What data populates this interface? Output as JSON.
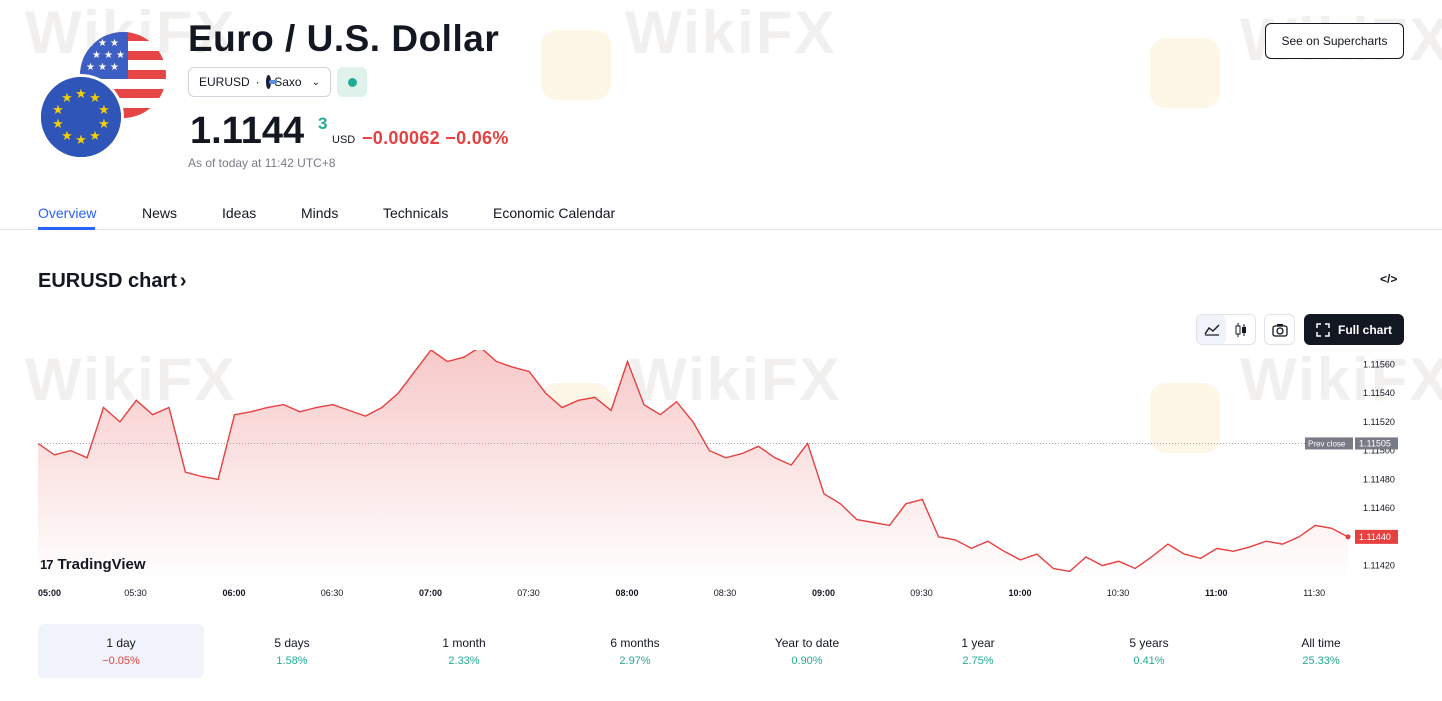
{
  "header": {
    "title": "Euro / U.S. Dollar",
    "symbol": "EURUSD",
    "separator": "·",
    "exchange": "Saxo",
    "price_main": "1.1144",
    "price_sup": "3",
    "currency": "USD",
    "change": "−0.00062 −0.06%",
    "as_of": "As of today at 11:42 UTC+8",
    "supercharts_label": "See on Supercharts"
  },
  "tabs": [
    {
      "label": "Overview",
      "active": true
    },
    {
      "label": "News"
    },
    {
      "label": "Ideas"
    },
    {
      "label": "Minds"
    },
    {
      "label": "Technicals"
    },
    {
      "label": "Economic Calendar"
    }
  ],
  "chart_section": {
    "heading": "EURUSD chart",
    "heading_arrow": "›",
    "embed_icon": "</>",
    "full_chart_label": "Full chart",
    "brand": "TradingView",
    "watermark": "WikiFX"
  },
  "chart_data": {
    "type": "area",
    "title": "",
    "x_labels": [
      "05:00",
      "05:30",
      "06:00",
      "06:30",
      "07:00",
      "07:30",
      "08:00",
      "08:30",
      "09:00",
      "09:30",
      "10:00",
      "10:30",
      "11:00",
      "11:30"
    ],
    "y_ticks": [
      "1.11560",
      "1.11540",
      "1.11520",
      "1.11500",
      "1.11480",
      "1.11460",
      "1.11420"
    ],
    "ylim": [
      1.1141,
      1.1157
    ],
    "prev_close": {
      "label": "Prev close",
      "value": "1.11505"
    },
    "last_price": "1.11440",
    "series": [
      {
        "x": [
          "05:00",
          "05:05",
          "05:10",
          "05:15",
          "05:20",
          "05:25",
          "05:30",
          "05:35",
          "05:40",
          "05:45",
          "05:50",
          "05:55",
          "06:00",
          "06:05",
          "06:10",
          "06:15",
          "06:20",
          "06:25",
          "06:30",
          "06:35",
          "06:40",
          "06:45",
          "06:50",
          "06:55",
          "07:00",
          "07:05",
          "07:10",
          "07:15",
          "07:20",
          "07:25",
          "07:30",
          "07:35",
          "07:40",
          "07:45",
          "07:50",
          "07:55",
          "08:00",
          "08:05",
          "08:10",
          "08:15",
          "08:20",
          "08:25",
          "08:30",
          "08:35",
          "08:40",
          "08:45",
          "08:50",
          "08:55",
          "09:00",
          "09:05",
          "09:10",
          "09:15",
          "09:20",
          "09:25",
          "09:30",
          "09:35",
          "09:40",
          "09:45",
          "09:50",
          "09:55",
          "10:00",
          "10:05",
          "10:10",
          "10:15",
          "10:20",
          "10:25",
          "10:30",
          "10:35",
          "10:40",
          "10:45",
          "10:50",
          "10:55",
          "11:00",
          "11:05",
          "11:10",
          "11:15",
          "11:20",
          "11:25",
          "11:30",
          "11:35",
          "11:40"
        ],
        "values": [
          1.11505,
          1.11497,
          1.115,
          1.11495,
          1.1153,
          1.1152,
          1.11535,
          1.11525,
          1.1153,
          1.11485,
          1.11482,
          1.1148,
          1.11525,
          1.11527,
          1.1153,
          1.11532,
          1.11527,
          1.1153,
          1.11532,
          1.11528,
          1.11524,
          1.1153,
          1.1154,
          1.11555,
          1.1157,
          1.11562,
          1.11565,
          1.11572,
          1.11562,
          1.11558,
          1.11555,
          1.1154,
          1.1153,
          1.11535,
          1.11537,
          1.11528,
          1.11562,
          1.11532,
          1.11525,
          1.11534,
          1.1152,
          1.115,
          1.11495,
          1.11498,
          1.11503,
          1.11495,
          1.1149,
          1.11505,
          1.1147,
          1.11463,
          1.11452,
          1.1145,
          1.11448,
          1.11463,
          1.11466,
          1.1144,
          1.11438,
          1.11432,
          1.11437,
          1.1143,
          1.11424,
          1.11428,
          1.11418,
          1.11416,
          1.11426,
          1.1142,
          1.11423,
          1.11418,
          1.11426,
          1.11435,
          1.11428,
          1.11425,
          1.11432,
          1.1143,
          1.11433,
          1.11437,
          1.11435,
          1.1144,
          1.11448,
          1.11446,
          1.1144
        ]
      }
    ],
    "colors": {
      "line": "#e64040",
      "fill_top": "#f7c8c8",
      "fill_bottom": "#ffffff",
      "last_price_bg": "#e64040",
      "prev_close_bg": "#787b86"
    }
  },
  "periods": [
    {
      "label": "1 day",
      "value": "−0.05%",
      "dir": "down",
      "active": true
    },
    {
      "label": "5 days",
      "value": "1.58%",
      "dir": "up"
    },
    {
      "label": "1 month",
      "value": "2.33%",
      "dir": "up"
    },
    {
      "label": "6 months",
      "value": "2.97%",
      "dir": "up"
    },
    {
      "label": "Year to date",
      "value": "0.90%",
      "dir": "up"
    },
    {
      "label": "1 year",
      "value": "2.75%",
      "dir": "up"
    },
    {
      "label": "5 years",
      "value": "0.41%",
      "dir": "up"
    },
    {
      "label": "All time",
      "value": "25.33%",
      "dir": "up"
    }
  ]
}
